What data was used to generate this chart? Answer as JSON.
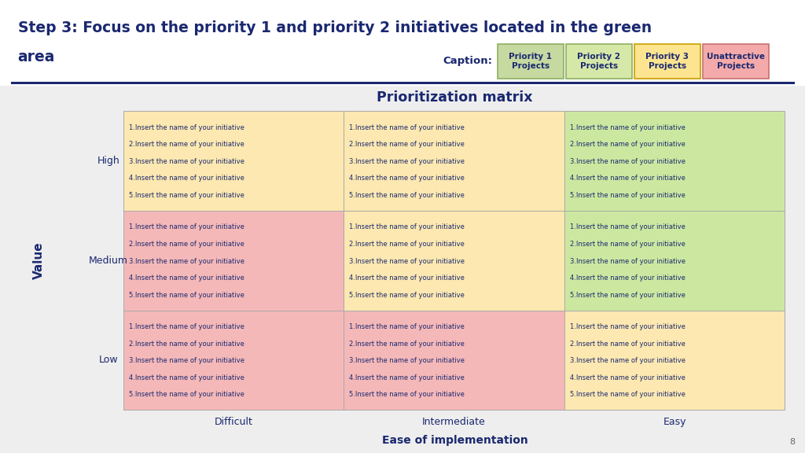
{
  "title_line1": "Step 3: Focus on the priority 1 and priority 2 initiatives located in the green",
  "title_line2": "area",
  "matrix_title": "Prioritization matrix",
  "bg_color": "#eeeeee",
  "title_bg_color": "#ffffff",
  "title_color": "#1a2870",
  "matrix_title_color": "#1a2870",
  "header_separator_color": "#1a2870",
  "caption_label": "Caption:",
  "caption_labels": [
    "Priority 1\nProjects",
    "Priority 2\nProjects",
    "Priority 3\nProjects",
    "Unattractive\nProjects"
  ],
  "caption_bg_colors": [
    "#c6d9a0",
    "#d6e8a8",
    "#fce490",
    "#f4aaaa"
  ],
  "caption_border_colors": [
    "#8db060",
    "#8db060",
    "#c8a000",
    "#c87070"
  ],
  "rows": [
    "High",
    "Medium",
    "Low"
  ],
  "cols": [
    "Difficult",
    "Intermediate",
    "Easy"
  ],
  "value_label": "Value",
  "ease_label": "Ease of implementation",
  "cell_text_lines": [
    "1.Insert the name of your initiative",
    "2.Insert the name of your initiative",
    "3.Insert the name of your initiative",
    "4.Insert the name of your initiative",
    "5.Insert the name of your initiative"
  ],
  "cell_colors": {
    "0_0": "#fce8b0",
    "0_1": "#fce8b0",
    "0_2": "#cce8a0",
    "1_0": "#f4b8b8",
    "1_1": "#fce8b0",
    "1_2": "#cce8a0",
    "2_0": "#f4b8b8",
    "2_1": "#f4b8b8",
    "2_2": "#fce8b0"
  },
  "cell_border_color": "#aaaaaa",
  "cell_text_color": "#1a2870",
  "row_label_color": "#1a2870",
  "col_label_color": "#1a2870",
  "page_number": "8"
}
